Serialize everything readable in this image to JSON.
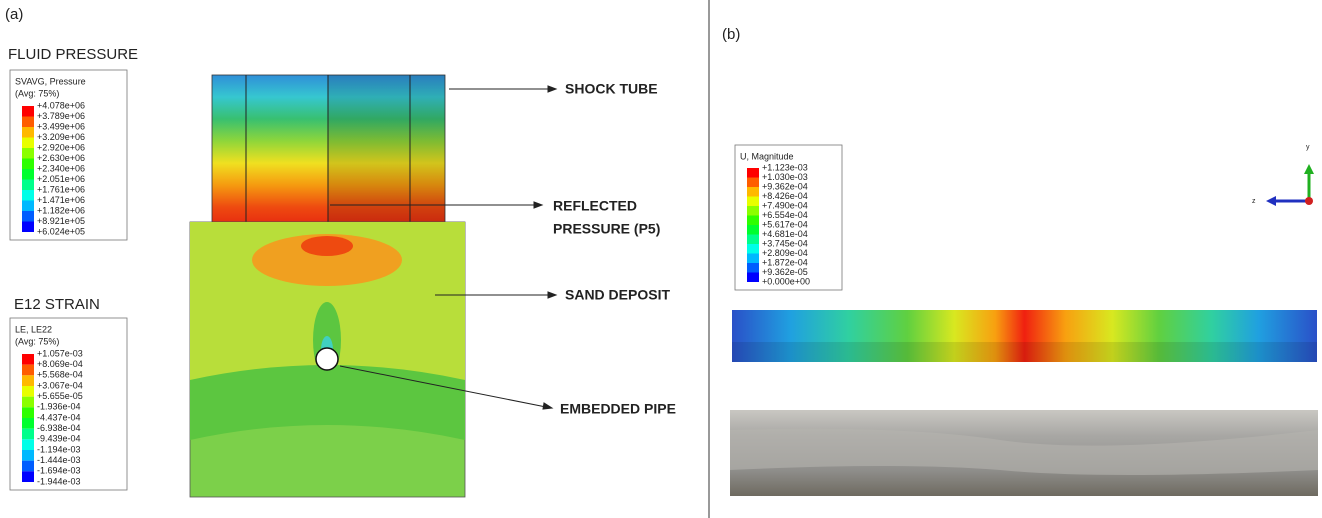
{
  "panel_a": {
    "label": "(a)",
    "fluid_pressure": {
      "title": "FLUID PRESSURE",
      "variable": "SVAVG, Pressure",
      "averaging": "(Avg: 75%)",
      "entries": [
        "+4.078e+06",
        "+3.789e+06",
        "+3.499e+06",
        "+3.209e+06",
        "+2.920e+06",
        "+2.630e+06",
        "+2.340e+06",
        "+2.051e+06",
        "+1.761e+06",
        "+1.471e+06",
        "+1.182e+06",
        "+8.921e+05",
        "+6.024e+05"
      ]
    },
    "e12_strain": {
      "title": "E12 STRAIN",
      "variable": "LE, LE22",
      "averaging": "(Avg: 75%)",
      "entries": [
        "+1.057e-03",
        "+8.069e-04",
        "+5.568e-04",
        "+3.067e-04",
        "+5.655e-05",
        "-1.936e-04",
        "-4.437e-04",
        "-6.938e-04",
        "-9.439e-04",
        "-1.194e-03",
        "-1.444e-03",
        "-1.694e-03",
        "-1.944e-03"
      ]
    },
    "annotations": {
      "shock_tube": "SHOCK TUBE",
      "reflected_pressure": [
        "REFLECTED",
        "PRESSURE (P5)"
      ],
      "sand_deposit": "SAND DEPOSIT",
      "embedded_pipe": "EMBEDDED PIPE"
    }
  },
  "panel_b": {
    "label": "(b)",
    "displacement": {
      "variable": "U, Magnitude",
      "entries": [
        "+1.123e-03",
        "+1.030e-03",
        "+9.362e-04",
        "+8.426e-04",
        "+7.490e-04",
        "+6.554e-04",
        "+5.617e-04",
        "+4.681e-04",
        "+3.745e-04",
        "+2.809e-04",
        "+1.872e-04",
        "+9.362e-05",
        "+0.000e+00"
      ]
    },
    "triad": {
      "y": "y",
      "z": "z"
    }
  }
}
